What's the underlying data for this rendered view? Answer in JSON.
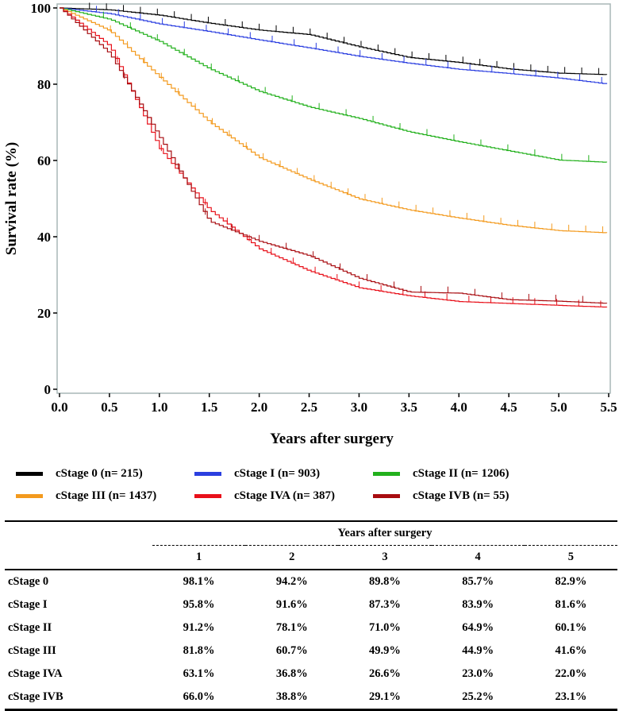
{
  "chart_data": {
    "type": "line",
    "title": "",
    "xlabel": "Years after surgery",
    "ylabel": "Survival rate (%)",
    "xlim": [
      0,
      5.5
    ],
    "ylim": [
      0,
      100
    ],
    "x_ticks": [
      "0.0",
      "0.5",
      "1.0",
      "1.5",
      "2.0",
      "2.5",
      "3.0",
      "3.5",
      "4.0",
      "4.5",
      "5.0",
      "5.5"
    ],
    "y_ticks": [
      "0",
      "20",
      "40",
      "60",
      "80",
      "100"
    ],
    "grid": false,
    "legend_position": "bottom",
    "x": [
      0,
      0.5,
      1,
      1.5,
      2,
      2.5,
      3,
      3.5,
      4,
      4.5,
      5,
      5.5
    ],
    "series": [
      {
        "name": "cStage 0 (n= 215)",
        "color": "#000000",
        "values": [
          100,
          99.5,
          98.1,
          96,
          94.2,
          93,
          89.8,
          87,
          85.7,
          84,
          82.9,
          82.5
        ]
      },
      {
        "name": "cStage I (n= 903)",
        "color": "#2b3fe0",
        "values": [
          100,
          98.5,
          95.8,
          93.8,
          91.6,
          89.5,
          87.3,
          85.5,
          83.9,
          82.8,
          81.6,
          80
        ]
      },
      {
        "name": "cStage II (n= 1206)",
        "color": "#22b01c",
        "values": [
          100,
          97,
          91.2,
          84,
          78.1,
          74,
          71,
          67.5,
          64.9,
          62.5,
          60.1,
          59.5
        ]
      },
      {
        "name": "cStage III (n= 1437)",
        "color": "#f39a1e",
        "values": [
          100,
          94,
          81.8,
          70,
          60.7,
          55,
          49.9,
          47,
          44.9,
          43,
          41.6,
          41
        ]
      },
      {
        "name": "cStage IVA (n= 387)",
        "color": "#e8101a",
        "values": [
          100,
          90,
          63.1,
          47,
          36.8,
          31,
          26.6,
          24.5,
          23,
          22.5,
          22,
          21.5
        ]
      },
      {
        "name": "cStage IVB (n= 55)",
        "color": "#a80c10",
        "values": [
          100,
          88,
          66,
          44,
          38.8,
          35,
          29.1,
          25.5,
          25.2,
          23.5,
          23.1,
          22.5
        ]
      }
    ]
  },
  "table": {
    "header": "Years after surgery",
    "columns": [
      "1",
      "2",
      "3",
      "4",
      "5"
    ],
    "rows": [
      {
        "label": "cStage 0",
        "values": [
          "98.1%",
          "94.2%",
          "89.8%",
          "85.7%",
          "82.9%"
        ]
      },
      {
        "label": "cStage I",
        "values": [
          "95.8%",
          "91.6%",
          "87.3%",
          "83.9%",
          "81.6%"
        ]
      },
      {
        "label": "cStage II",
        "values": [
          "91.2%",
          "78.1%",
          "71.0%",
          "64.9%",
          "60.1%"
        ]
      },
      {
        "label": "cStage III",
        "values": [
          "81.8%",
          "60.7%",
          "49.9%",
          "44.9%",
          "41.6%"
        ]
      },
      {
        "label": "cStage IVA",
        "values": [
          "63.1%",
          "36.8%",
          "26.6%",
          "23.0%",
          "22.0%"
        ]
      },
      {
        "label": "cStage IVB",
        "values": [
          "66.0%",
          "38.8%",
          "29.1%",
          "25.2%",
          "23.1%"
        ]
      }
    ]
  }
}
